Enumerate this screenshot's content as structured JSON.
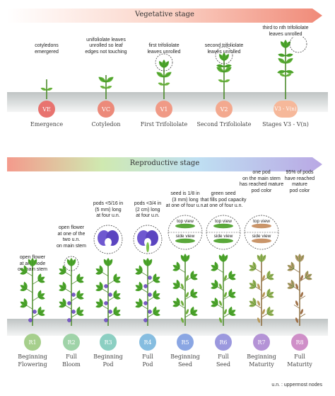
{
  "vegetative": {
    "title": "Vegetative stage",
    "stages": [
      {
        "code": "VE",
        "name": "Emergence",
        "note": "cotyledons\nemergered",
        "color": "#e8736f"
      },
      {
        "code": "VC",
        "name": "Cotyledon",
        "note": "unifoliolate leaves\nunrolled so leaf\nedges not touching",
        "color": "#ec8a7a"
      },
      {
        "code": "V1",
        "name": "First Trifoliolate",
        "note": "first trifoliolate\nleaves unrolled",
        "color": "#f09a86"
      },
      {
        "code": "V2",
        "name": "Second Trifoliolate",
        "note": "second trifoliolate\nleaves unrolled",
        "color": "#f3a98f"
      },
      {
        "code": "V3 - V(n)",
        "name": "Stages V3 - V(n)",
        "note": "third to nth trifoliolate\nleaves unrolled",
        "color": "#f6b89a"
      }
    ]
  },
  "reproductive": {
    "title": "Reproductive stage",
    "stages": [
      {
        "code": "R1",
        "name": "Beginning\nFlowering",
        "note": "open flower\nat any node\non main stem",
        "color": "#a6cf8c"
      },
      {
        "code": "R2",
        "name": "Full\nBloom",
        "note": "open flower\nat one of the\ntwo u.n.\non main stem",
        "color": "#9fd3a8"
      },
      {
        "code": "R3",
        "name": "Beginning\nPod",
        "note": "pods <5/16 in\n(5 mm) long\nat four u.n.",
        "color": "#8ccfc2"
      },
      {
        "code": "R4",
        "name": "Full\nPod",
        "note": "pods <3/4 in\n(2 cm) long\nat four u.n.",
        "color": "#86bde0"
      },
      {
        "code": "R5",
        "name": "Beginning\nSeed",
        "note": "seed is 1/8 in\n(3 mm) long\nat one of four u.n.",
        "color": "#8aa6e3"
      },
      {
        "code": "R6",
        "name": "Full\nSeed",
        "note": "green seed\nthat fills pod capacity\nat one of four u.n.",
        "color": "#9b98de"
      },
      {
        "code": "R7",
        "name": "Beginning\nMaturity",
        "note": "one pod\non the main stem\nhas reached mature\npod color",
        "color": "#b493d6"
      },
      {
        "code": "R8",
        "name": "Full\nMaturity",
        "note": "95% of pods\nhave reached\nmature\npod color",
        "color": "#cf8fc8"
      }
    ],
    "inset": {
      "top": "top view",
      "side": "side view"
    }
  },
  "footnote": "u.n. : uppermost nodes"
}
